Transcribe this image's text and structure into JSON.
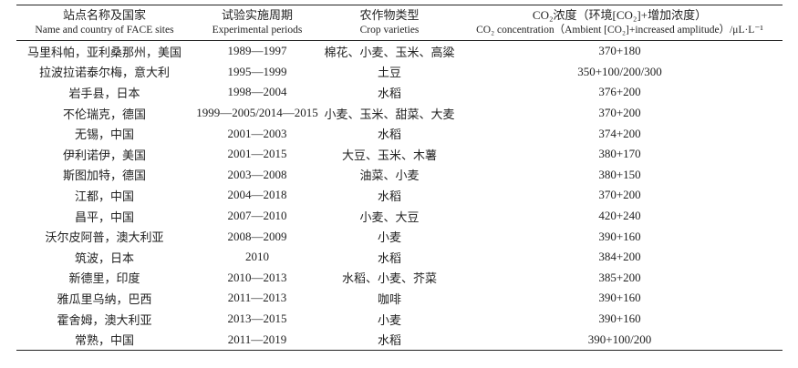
{
  "table": {
    "header": [
      {
        "zh": "站点名称及国家",
        "en": "Name and country of FACE sites"
      },
      {
        "zh": "试验实施周期",
        "en": "Experimental periods"
      },
      {
        "zh": "农作物类型",
        "en": "Crop varieties"
      },
      {
        "zh": "CO₂浓度（环境[CO₂]+增加浓度）",
        "en": "CO₂ concentration（Ambient [CO₂]+increased amplitude）/μL·L⁻¹"
      }
    ],
    "rows": [
      [
        "马里科帕，亚利桑那州，美国",
        "1989—1997",
        "棉花、小麦、玉米、高粱",
        "370+180"
      ],
      [
        "拉波拉诺泰尔梅，意大利",
        "1995—1999",
        "土豆",
        "350+100/200/300"
      ],
      [
        "岩手县，日本",
        "1998—2004",
        "水稻",
        "376+200"
      ],
      [
        "不伦瑞克，德国",
        "1999—2005/2014—2015",
        "小麦、玉米、甜菜、大麦",
        "370+200"
      ],
      [
        "无锡，中国",
        "2001—2003",
        "水稻",
        "374+200"
      ],
      [
        "伊利诺伊，美国",
        "2001—2015",
        "大豆、玉米、木薯",
        "380+170"
      ],
      [
        "斯图加特，德国",
        "2003—2008",
        "油菜、小麦",
        "380+150"
      ],
      [
        "江都，中国",
        "2004—2018",
        "水稻",
        "370+200"
      ],
      [
        "昌平，中国",
        "2007—2010",
        "小麦、大豆",
        "420+240"
      ],
      [
        "沃尔皮阿普，澳大利亚",
        "2008—2009",
        "小麦",
        "390+160"
      ],
      [
        "筑波，日本",
        "2010",
        "水稻",
        "384+200"
      ],
      [
        "新德里，印度",
        "2010—2013",
        "水稻、小麦、芥菜",
        "385+200"
      ],
      [
        "雅瓜里乌纳，巴西",
        "2011—2013",
        "咖啡",
        "390+160"
      ],
      [
        "霍舍姆，澳大利亚",
        "2013—2015",
        "小麦",
        "390+160"
      ],
      [
        "常熟，中国",
        "2011—2019",
        "水稻",
        "390+100/200"
      ]
    ]
  }
}
